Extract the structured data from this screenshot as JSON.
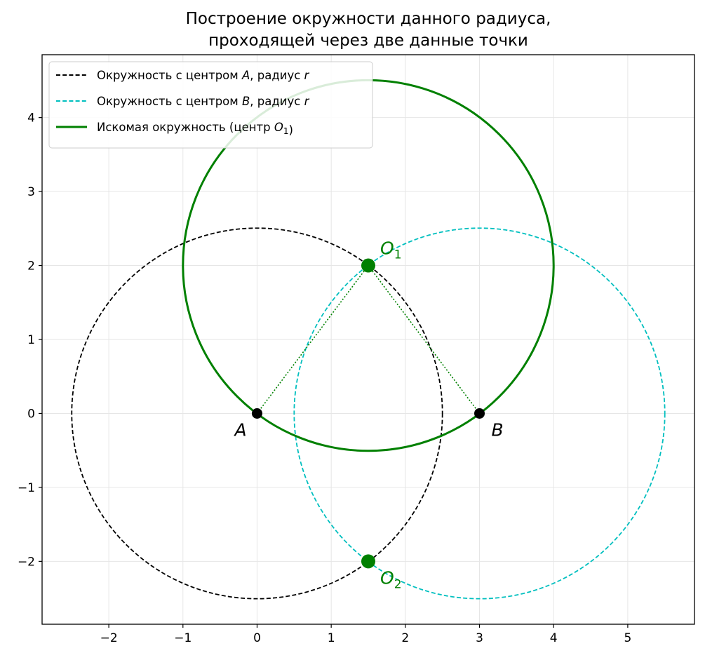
{
  "title": {
    "line1": "Построение окружности данного радиуса,",
    "line2": "проходящей через две данные точки"
  },
  "chart_data": {
    "type": "diagram",
    "xlim": [
      -2.9,
      5.9
    ],
    "ylim": [
      -2.85,
      4.85
    ],
    "x_ticks": [
      -2,
      -1,
      0,
      1,
      2,
      3,
      4,
      5
    ],
    "y_ticks": [
      -2,
      -1,
      0,
      1,
      2,
      3,
      4
    ],
    "x_tick_labels": [
      "−2",
      "−1",
      "0",
      "1",
      "2",
      "3",
      "4",
      "5"
    ],
    "y_tick_labels": [
      "−2",
      "−1",
      "0",
      "1",
      "2",
      "3",
      "4"
    ],
    "grid": true,
    "legend_position": "top-left",
    "legend": [
      {
        "prefix": "Окружность с центром ",
        "var": "A",
        "mid": ", радиус ",
        "var2": "r",
        "sub": "",
        "suffix": "",
        "color": "#000000",
        "style": "dashed"
      },
      {
        "prefix": "Окружность с центром ",
        "var": "B",
        "mid": ", радиус ",
        "var2": "r",
        "sub": "",
        "suffix": "",
        "color": "#00bfbf",
        "style": "dashed"
      },
      {
        "prefix": "Искомая окружность (центр ",
        "var": "O",
        "mid": "",
        "var2": "",
        "sub": "1",
        "suffix": ")",
        "color": "#008000",
        "style": "solid"
      }
    ],
    "circles": [
      {
        "cx": 0,
        "cy": 0,
        "r": 2.5,
        "color": "#000000",
        "style": "dashed"
      },
      {
        "cx": 3,
        "cy": 0,
        "r": 2.5,
        "color": "#00bfbf",
        "style": "dashed"
      },
      {
        "cx": 1.5,
        "cy": 2,
        "r": 2.5,
        "color": "#008000",
        "style": "solid"
      }
    ],
    "segments": [
      {
        "x1": 0,
        "y1": 0,
        "x2": 1.5,
        "y2": 2,
        "color": "#008000",
        "style": "dotted"
      },
      {
        "x1": 3,
        "y1": 0,
        "x2": 1.5,
        "y2": 2,
        "color": "#008000",
        "style": "dotted"
      }
    ],
    "points": [
      {
        "name": "A",
        "sub": "",
        "x": 0,
        "y": 0,
        "color": "#000000",
        "label_color": "#000000",
        "label_pos": "below-left",
        "size": "small"
      },
      {
        "name": "B",
        "sub": "",
        "x": 3,
        "y": 0,
        "color": "#000000",
        "label_color": "#000000",
        "label_pos": "below-right",
        "size": "small"
      },
      {
        "name": "O",
        "sub": "1",
        "x": 1.5,
        "y": 2,
        "color": "#008000",
        "label_color": "#008000",
        "label_pos": "above-right",
        "size": "large"
      },
      {
        "name": "O",
        "sub": "2",
        "x": 1.5,
        "y": -2,
        "color": "#008000",
        "label_color": "#008000",
        "label_pos": "below-right",
        "size": "large"
      }
    ]
  }
}
